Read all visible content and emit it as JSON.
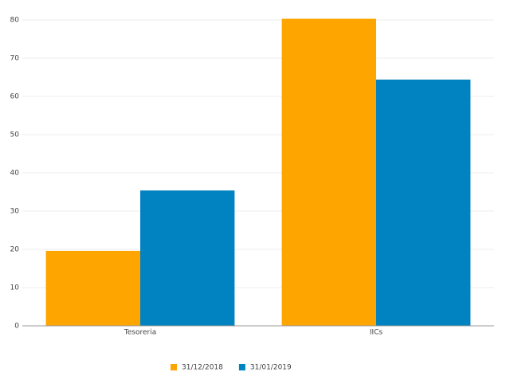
{
  "chart_data": {
    "type": "bar",
    "categories": [
      "Tesoreria",
      "IICs"
    ],
    "series": [
      {
        "name": "31/12/2018",
        "color": "#ffa500",
        "values": [
          19.6,
          80.3
        ]
      },
      {
        "name": "31/01/2019",
        "color": "#0083c0",
        "values": [
          35.4,
          64.4
        ]
      }
    ],
    "ylim": [
      0,
      80
    ],
    "yticks": [
      0,
      10,
      20,
      30,
      40,
      50,
      60,
      70,
      80
    ],
    "grid": true,
    "legend": "bottom"
  }
}
